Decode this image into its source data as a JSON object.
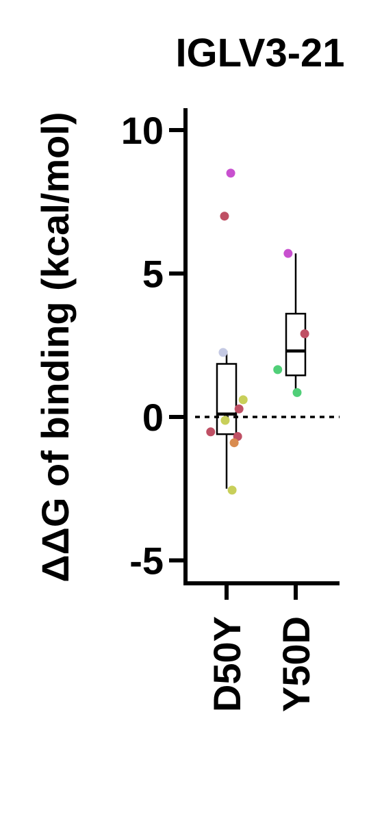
{
  "chart_data": {
    "type": "scatter",
    "title": "IGLV3-21",
    "ylabel": "ΔΔG of binding (kcal/mol)",
    "xlabel": "",
    "categories": [
      "D50Y",
      "Y50D"
    ],
    "ylim": [
      -5.8,
      10.8
    ],
    "yticks": [
      -5,
      0,
      5,
      10
    ],
    "ytick_labels": [
      "-5",
      "0",
      "5",
      "10"
    ],
    "reference_line": {
      "y": 0,
      "style": "dotted"
    },
    "grid": false,
    "legend": "none",
    "boxes": [
      {
        "category": "D50Y",
        "whisker_low": -2.5,
        "q1": -0.6,
        "median": 0.1,
        "q3": 1.85,
        "whisker_high": 2.3
      },
      {
        "category": "Y50D",
        "whisker_low": 0.9,
        "q1": 1.45,
        "median": 2.3,
        "q3": 3.6,
        "whisker_high": 5.7
      }
    ],
    "points": [
      {
        "category": "D50Y",
        "offset": 0.06,
        "y": 8.5,
        "color": "#c850cf"
      },
      {
        "category": "D50Y",
        "offset": -0.03,
        "y": 7.0,
        "color": "#bf5064"
      },
      {
        "category": "D50Y",
        "offset": -0.05,
        "y": 2.25,
        "color": "#c4c9e3"
      },
      {
        "category": "D50Y",
        "offset": 0.24,
        "y": 0.6,
        "color": "#c8cf5a"
      },
      {
        "category": "D50Y",
        "offset": 0.18,
        "y": 0.28,
        "color": "#bf5064"
      },
      {
        "category": "D50Y",
        "offset": -0.02,
        "y": -0.12,
        "color": "#c8cf5a"
      },
      {
        "category": "D50Y",
        "offset": -0.23,
        "y": -0.52,
        "color": "#bf5064"
      },
      {
        "category": "D50Y",
        "offset": 0.16,
        "y": -0.68,
        "color": "#bf5064"
      },
      {
        "category": "D50Y",
        "offset": 0.11,
        "y": -0.9,
        "color": "#d98c50"
      },
      {
        "category": "D50Y",
        "offset": 0.08,
        "y": -2.55,
        "color": "#c8cf5a"
      },
      {
        "category": "Y50D",
        "offset": -0.11,
        "y": 5.7,
        "color": "#c850cf"
      },
      {
        "category": "Y50D",
        "offset": 0.13,
        "y": 2.9,
        "color": "#bf5064"
      },
      {
        "category": "Y50D",
        "offset": -0.26,
        "y": 1.65,
        "color": "#50cf78"
      },
      {
        "category": "Y50D",
        "offset": 0.02,
        "y": 0.85,
        "color": "#50cf78"
      }
    ]
  }
}
